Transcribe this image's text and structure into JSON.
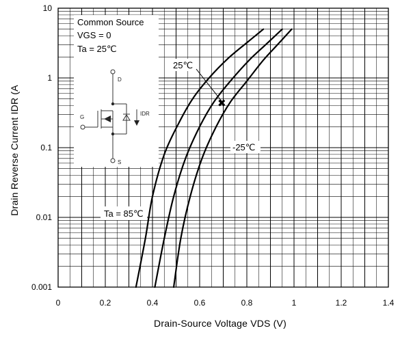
{
  "chart_data": {
    "type": "line",
    "xlabel": "Drain-Source Voltage VDS (V)",
    "ylabel": "Drain Reverse Current  IDR (A",
    "xlim": [
      0,
      1.4
    ],
    "ylim": [
      0.001,
      10
    ],
    "y_scale": "log",
    "x_ticks": [
      "0",
      "0.2",
      "0.4",
      "0.6",
      "0.8",
      "1",
      "1.2",
      "1.4"
    ],
    "y_ticks": [
      "0.001",
      "0.01",
      "0.1",
      "1",
      "10"
    ],
    "grid": true,
    "conditions": [
      "Common Source",
      "VGS = 0",
      "Ta = 25℃"
    ],
    "schematic_labels": {
      "drain": "D",
      "gate": "G",
      "source": "S",
      "current": "IDR"
    },
    "series": [
      {
        "name": "Ta = 85℃",
        "points": [
          [
            0.33,
            0.001
          ],
          [
            0.37,
            0.005
          ],
          [
            0.4,
            0.02
          ],
          [
            0.45,
            0.08
          ],
          [
            0.51,
            0.22
          ],
          [
            0.57,
            0.5
          ],
          [
            0.64,
            1.0
          ],
          [
            0.72,
            1.9
          ],
          [
            0.8,
            3.2
          ],
          [
            0.87,
            5.0
          ]
        ]
      },
      {
        "name": "25℃",
        "points": [
          [
            0.41,
            0.001
          ],
          [
            0.45,
            0.005
          ],
          [
            0.49,
            0.02
          ],
          [
            0.54,
            0.07
          ],
          [
            0.6,
            0.2
          ],
          [
            0.66,
            0.45
          ],
          [
            0.73,
            0.9
          ],
          [
            0.81,
            1.8
          ],
          [
            0.88,
            3.0
          ],
          [
            0.95,
            5.0
          ]
        ]
      },
      {
        "name": "-25℃",
        "points": [
          [
            0.49,
            0.001
          ],
          [
            0.52,
            0.005
          ],
          [
            0.56,
            0.02
          ],
          [
            0.61,
            0.07
          ],
          [
            0.67,
            0.2
          ],
          [
            0.73,
            0.45
          ],
          [
            0.8,
            0.9
          ],
          [
            0.87,
            1.8
          ],
          [
            0.93,
            3.0
          ],
          [
            0.99,
            5.0
          ]
        ]
      }
    ]
  }
}
